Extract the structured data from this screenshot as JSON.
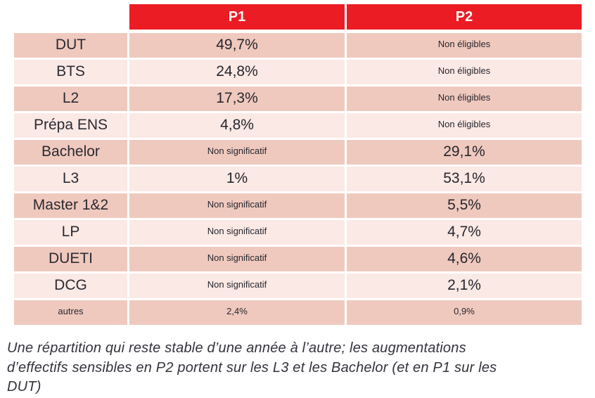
{
  "colors": {
    "header_red": "#ec1c24",
    "row_dark_pink": "#f0c9be",
    "row_light_pink": "#fbe9e5",
    "table_text": "#26262e",
    "caption_text": "#33333c"
  },
  "table": {
    "header": {
      "col0": "",
      "p1": "P1",
      "p2": "P2"
    },
    "rows": [
      {
        "label": "DUT",
        "p1": "49,7%",
        "p2": "Non éligibles"
      },
      {
        "label": "BTS",
        "p1": "24,8%",
        "p2": "Non éligibles"
      },
      {
        "label": "L2",
        "p1": "17,3%",
        "p2": "Non éligibles"
      },
      {
        "label": "Prépa ENS",
        "p1": "4,8%",
        "p2": "Non éligibles"
      },
      {
        "label": "Bachelor",
        "p1": "Non significatif",
        "p2": "29,1%"
      },
      {
        "label": "L3",
        "p1": "1%",
        "p2": "53,1%"
      },
      {
        "label": "Master 1&2",
        "p1": "Non significatif",
        "p2": "5,5%"
      },
      {
        "label": "LP",
        "p1": "Non significatif",
        "p2": "4,7%"
      },
      {
        "label": "DUETI",
        "p1": "Non significatif",
        "p2": "4,6%"
      },
      {
        "label": "DCG",
        "p1": "Non significatif",
        "p2": "2,1%"
      },
      {
        "label": "autres",
        "p1": "2,4%",
        "p2": "0,9%"
      }
    ]
  },
  "caption": {
    "lines": [
      "Une répartition qui reste stable d’une année à l’autre; les augmentations",
      "d’effectifs sensibles en P2 portent sur les L3 et les Bachelor (et en P1 sur les",
      "DUT)"
    ]
  },
  "chart_data": {
    "type": "table",
    "columns": [
      "",
      "P1",
      "P2"
    ],
    "categories": [
      "DUT",
      "BTS",
      "L2",
      "Prépa ENS",
      "Bachelor",
      "L3",
      "Master 1&2",
      "LP",
      "DUETI",
      "DCG",
      "autres"
    ],
    "series": [
      {
        "name": "P1",
        "values": [
          49.7,
          24.8,
          17.3,
          4.8,
          null,
          1,
          null,
          null,
          null,
          null,
          2.4
        ]
      },
      {
        "name": "P2",
        "values": [
          null,
          null,
          null,
          null,
          29.1,
          53.1,
          5.5,
          4.7,
          4.6,
          2.1,
          0.9
        ]
      }
    ],
    "null_labels": {
      "P1": "Non significatif",
      "P2": "Non éligibles"
    },
    "caption": "Une répartition qui reste stable d’une année à l’autre; les augmentations d’effectifs sensibles en P2 portent sur les L3 et les Bachelor (et en P1 sur les DUT)"
  }
}
